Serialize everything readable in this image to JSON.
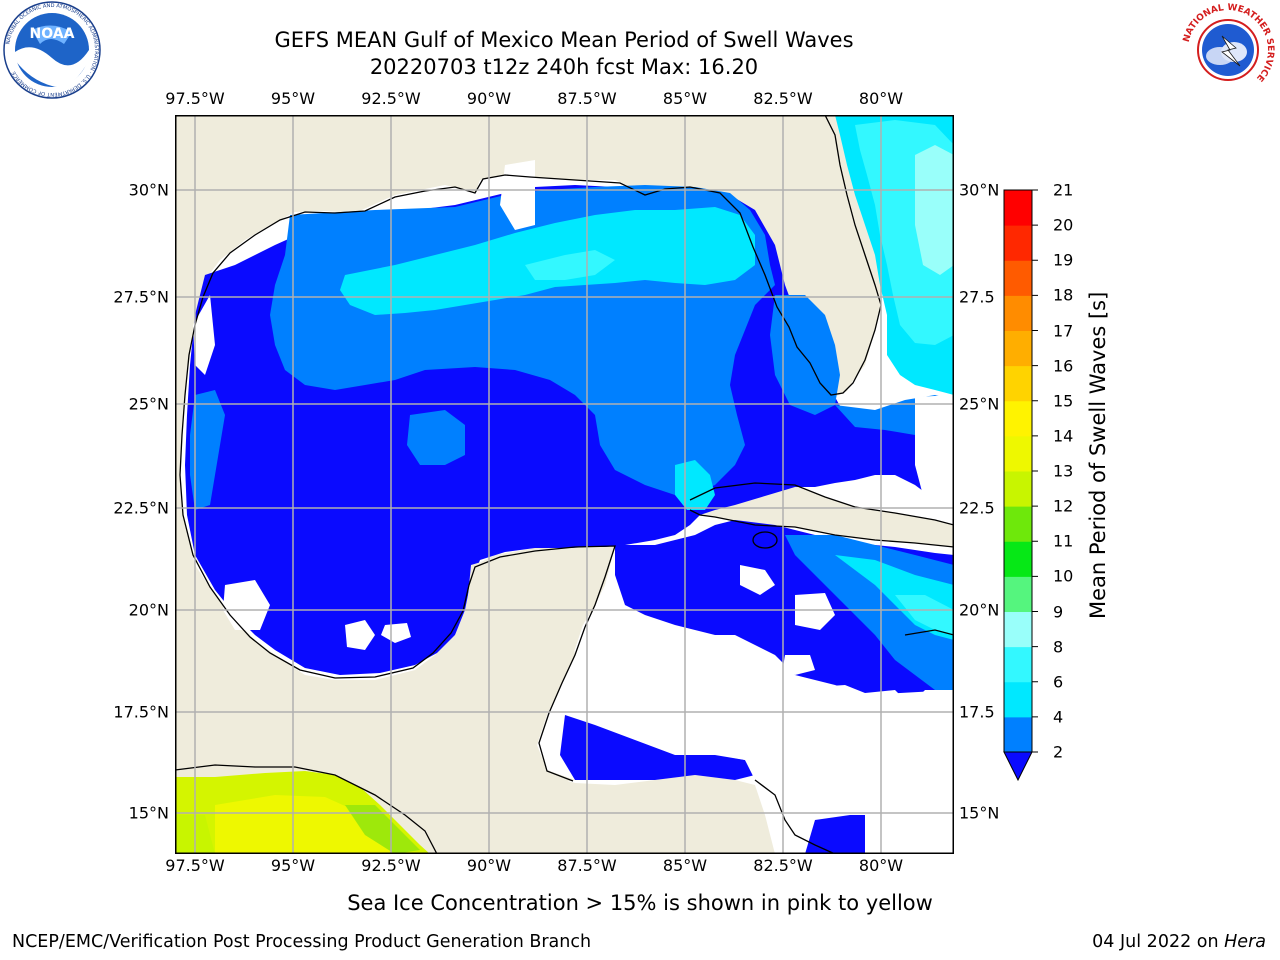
{
  "title": {
    "line1": "GEFS MEAN Gulf of Mexico Mean Period of Swell Waves",
    "line2": "20220703 t12z 240h fcst   Max: 16.20"
  },
  "logos": {
    "noaa_text": "NOAA",
    "noaa_ring_text": "NATIONAL OCEANIC AND ATMOSPHERIC ADMINISTRATION · U.S. DEPARTMENT OF COMMERCE",
    "nws_ring_text": "NATIONAL WEATHER SERVICE"
  },
  "map": {
    "lon_ticks": [
      "97.5°W",
      "95°W",
      "92.5°W",
      "90°W",
      "87.5°W",
      "85°W",
      "82.5°W",
      "80°W"
    ],
    "lat_ticks_left": [
      "30°N",
      "27.5°N",
      "25°N",
      "22.5°N",
      "20°N",
      "17.5°N",
      "15°N"
    ],
    "lat_ticks_right": [
      "30°N",
      "27.5",
      "25°N",
      "22.5",
      "20°N",
      "17.5",
      "15°N"
    ],
    "extent": {
      "lon": [
        -98,
        -79
      ],
      "lat": [
        14,
        32
      ]
    },
    "gridlines": true,
    "colors": {
      "land": "#efecdc",
      "coast": "#000000",
      "grid": "#b0b0b0",
      "missing": "#ffffff"
    }
  },
  "colorbar": {
    "label": "Mean Period of Swell Waves [s]",
    "ticks": [
      "2",
      "4",
      "6",
      "8",
      "9",
      "10",
      "11",
      "12",
      "13",
      "14",
      "15",
      "16",
      "17",
      "18",
      "19",
      "20",
      "21"
    ],
    "colors": [
      "#0a0aff",
      "#0080ff",
      "#00e8ff",
      "#33f8ff",
      "#99fffa",
      "#55f57e",
      "#06e816",
      "#6ee80b",
      "#c8f500",
      "#eef800",
      "#fff300",
      "#ffd300",
      "#ffae00",
      "#ff8c00",
      "#ff5b00",
      "#ff2800",
      "#ff0000"
    ],
    "extend": "min"
  },
  "subtitle": "Sea Ice Concentration > 15% is shown in pink to yellow",
  "footer": {
    "left": "NCEP/EMC/Verification Post Processing Product Generation Branch",
    "right_date": "04 Jul 2022 on ",
    "right_host": "Hera"
  }
}
